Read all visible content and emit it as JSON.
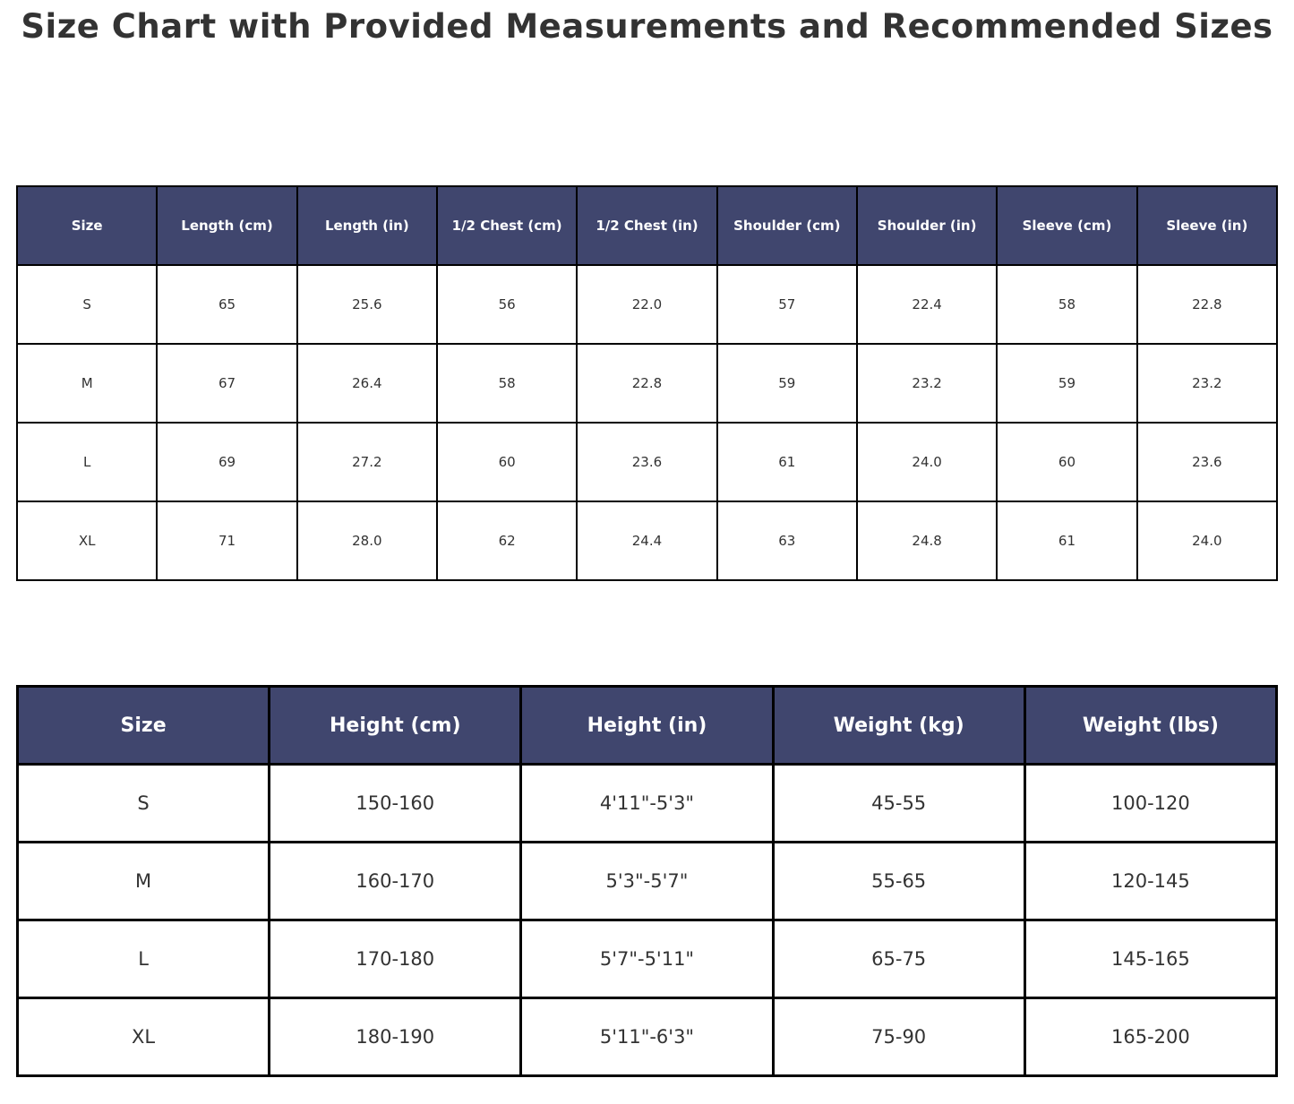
{
  "title": "Size Chart with Provided Measurements and Recommended Sizes",
  "colors": {
    "header_bg": "#40466e",
    "header_text": "#ffffff",
    "cell_text": "#333333",
    "border": "#000000",
    "background": "#ffffff",
    "title_text": "#333333"
  },
  "chart_data": [
    {
      "type": "table",
      "name": "provided_measurements",
      "columns": [
        "Size",
        "Length (cm)",
        "Length (in)",
        "1/2 Chest (cm)",
        "1/2 Chest (in)",
        "Shoulder (cm)",
        "Shoulder (in)",
        "Sleeve (cm)",
        "Sleeve (in)"
      ],
      "rows": [
        [
          "S",
          "65",
          "25.6",
          "56",
          "22.0",
          "57",
          "22.4",
          "58",
          "22.8"
        ],
        [
          "M",
          "67",
          "26.4",
          "58",
          "22.8",
          "59",
          "23.2",
          "59",
          "23.2"
        ],
        [
          "L",
          "69",
          "27.2",
          "60",
          "23.6",
          "61",
          "24.0",
          "60",
          "23.6"
        ],
        [
          "XL",
          "71",
          "28.0",
          "62",
          "24.4",
          "63",
          "24.8",
          "61",
          "24.0"
        ]
      ]
    },
    {
      "type": "table",
      "name": "recommended_sizes",
      "columns": [
        "Size",
        "Height (cm)",
        "Height (in)",
        "Weight (kg)",
        "Weight (lbs)"
      ],
      "rows": [
        [
          "S",
          "150-160",
          "4'11\"-5'3\"",
          "45-55",
          "100-120"
        ],
        [
          "M",
          "160-170",
          "5'3\"-5'7\"",
          "55-65",
          "120-145"
        ],
        [
          "L",
          "170-180",
          "5'7\"-5'11\"",
          "65-75",
          "145-165"
        ],
        [
          "XL",
          "180-190",
          "5'11\"-6'3\"",
          "75-90",
          "165-200"
        ]
      ]
    }
  ]
}
